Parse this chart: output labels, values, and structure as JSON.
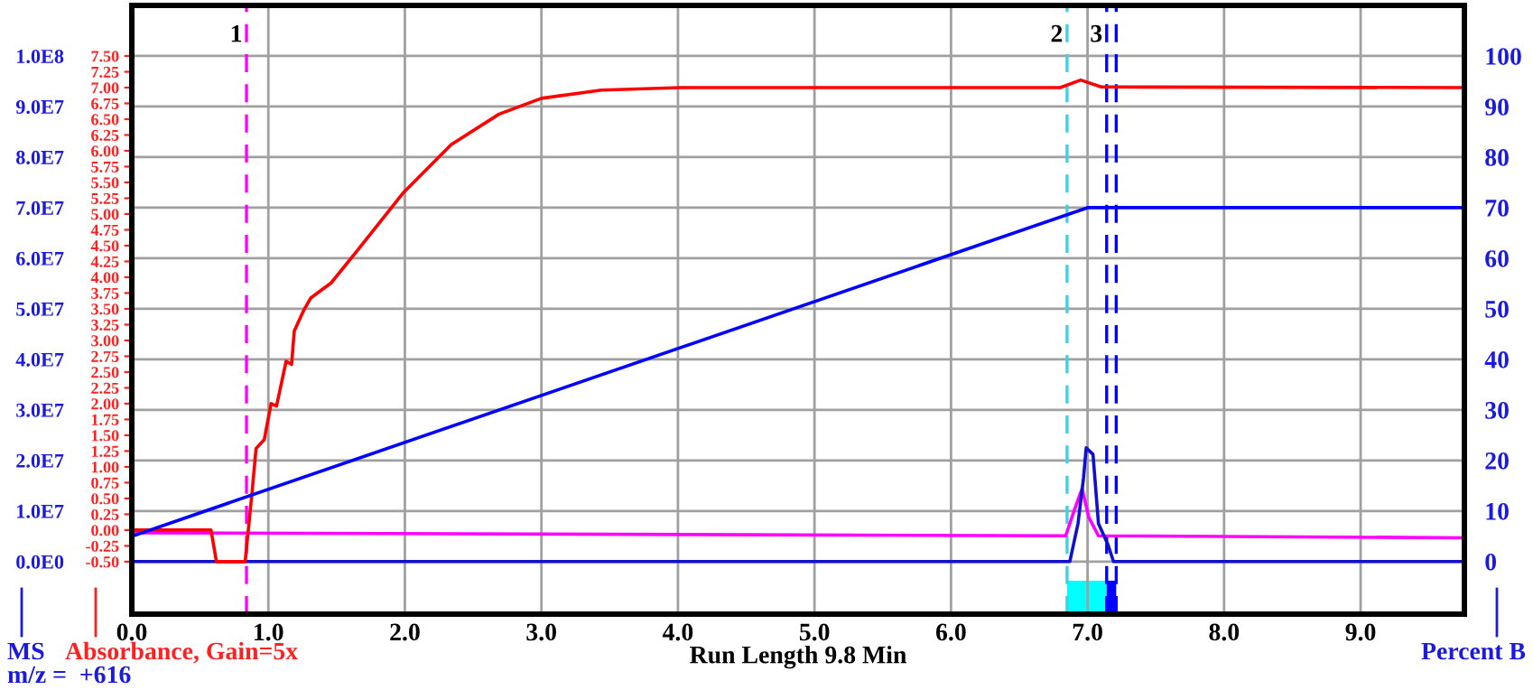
{
  "chart_data": {
    "type": "line",
    "xlabel": "Run Length 9.8 Min",
    "ylabel": "MS",
    "y2label": "Absorbance, Gain=5x",
    "y3label": "Percent B",
    "annotations": [
      "m/z =  +616",
      {
        "text": "1",
        "x": 0.84,
        "y": 104000000
      },
      {
        "text": "2",
        "x": 6.85,
        "y": 104000000
      },
      {
        "text": "3",
        "x": 7.14,
        "y": 104000000
      }
    ],
    "xlim": [
      0,
      9.76
    ],
    "xticks": [
      {
        "value": 0,
        "label": "0.0"
      },
      {
        "value": 1,
        "label": "1.0"
      },
      {
        "value": 2,
        "label": "2.0"
      },
      {
        "value": 3,
        "label": "3.0"
      },
      {
        "value": 4,
        "label": "4.0"
      },
      {
        "value": 5,
        "label": "5.0"
      },
      {
        "value": 6,
        "label": "6.0"
      },
      {
        "value": 7,
        "label": "7.0"
      },
      {
        "value": 8,
        "label": "8.0"
      },
      {
        "value": 9,
        "label": "9.0"
      }
    ],
    "ylim": [
      -10400000,
      110000000
    ],
    "yticks": [
      {
        "value": 0,
        "label": "0.0E0"
      },
      {
        "value": 10000000,
        "label": "1.0E7"
      },
      {
        "value": 20000000,
        "label": "2.0E7"
      },
      {
        "value": 30000000,
        "label": "3.0E7"
      },
      {
        "value": 40000000,
        "label": "4.0E7"
      },
      {
        "value": 50000000,
        "label": "5.0E7"
      },
      {
        "value": 60000000,
        "label": "6.0E7"
      },
      {
        "value": 70000000,
        "label": "7.0E7"
      },
      {
        "value": 80000000,
        "label": "8.0E7"
      },
      {
        "value": 90000000,
        "label": "9.0E7"
      },
      {
        "value": 100000000,
        "label": "1.0E8"
      }
    ],
    "y2lim": [
      -1.33,
      8.3
    ],
    "y2ticks": [
      {
        "value": -0.5,
        "label": "-0.50"
      },
      {
        "value": -0.25,
        "label": "-0.25"
      },
      {
        "value": 0,
        "label": "0.00"
      },
      {
        "value": 0.25,
        "label": "0.25"
      },
      {
        "value": 0.5,
        "label": "0.50"
      },
      {
        "value": 0.75,
        "label": "0.75"
      },
      {
        "value": 1,
        "label": "1.00"
      },
      {
        "value": 1.25,
        "label": "1.25"
      },
      {
        "value": 1.5,
        "label": "1.50"
      },
      {
        "value": 1.75,
        "label": "1.75"
      },
      {
        "value": 2,
        "label": "2.00"
      },
      {
        "value": 2.25,
        "label": "2.25"
      },
      {
        "value": 2.5,
        "label": "2.50"
      },
      {
        "value": 2.75,
        "label": "2.75"
      },
      {
        "value": 3,
        "label": "3.00"
      },
      {
        "value": 3.25,
        "label": "3.25"
      },
      {
        "value": 3.5,
        "label": "3.50"
      },
      {
        "value": 3.75,
        "label": "3.75"
      },
      {
        "value": 4,
        "label": "4.00"
      },
      {
        "value": 4.25,
        "label": "4.25"
      },
      {
        "value": 4.5,
        "label": "4.50"
      },
      {
        "value": 4.75,
        "label": "4.75"
      },
      {
        "value": 5,
        "label": "5.00"
      },
      {
        "value": 5.25,
        "label": "5.25"
      },
      {
        "value": 5.5,
        "label": "5.50"
      },
      {
        "value": 5.75,
        "label": "5.75"
      },
      {
        "value": 6,
        "label": "6.00"
      },
      {
        "value": 6.25,
        "label": "6.25"
      },
      {
        "value": 6.5,
        "label": "6.50"
      },
      {
        "value": 6.75,
        "label": "6.75"
      },
      {
        "value": 7,
        "label": "7.00"
      },
      {
        "value": 7.25,
        "label": "7.25"
      },
      {
        "value": 7.5,
        "label": "7.50"
      }
    ],
    "y3lim": [
      -10.4,
      110
    ],
    "y3ticks": [
      0,
      10,
      20,
      30,
      40,
      50,
      60,
      70,
      80,
      90,
      100
    ],
    "grid": true,
    "series": [
      {
        "color": "#ff0000",
        "axis": "y2",
        "x": [
          0,
          0.58,
          0.62,
          0.83,
          0.88,
          0.91,
          0.97,
          1.02,
          1.06,
          1.13,
          1.17,
          1.19,
          1.26,
          1.31,
          1.46,
          1.64,
          1.99,
          2.34,
          2.69,
          3.0,
          3.44,
          4.02,
          4.99,
          6.8,
          6.95,
          7.1,
          9.76
        ],
        "values": [
          0.0,
          0.0,
          -0.5,
          -0.5,
          0.58,
          1.29,
          1.43,
          2.0,
          1.96,
          2.67,
          2.62,
          3.15,
          3.48,
          3.67,
          3.91,
          4.39,
          5.34,
          6.1,
          6.58,
          6.83,
          6.96,
          7.0,
          7.0,
          7.0,
          7.12,
          7.01,
          7.0
        ]
      },
      {
        "color": "#ff00ff",
        "axis": "y",
        "x": [
          0,
          6.84,
          6.9,
          6.96,
          7.01,
          7.08,
          9.76
        ],
        "values": [
          5700000,
          5100000,
          9900000,
          14400000,
          8700000,
          5100000,
          4700000
        ]
      },
      {
        "color": "#0000ff",
        "axis": "y3",
        "x": [
          0,
          7.0,
          9.76
        ],
        "values": [
          5,
          70,
          70
        ]
      },
      {
        "color": "#1010d0",
        "axis": "y",
        "x": [
          0,
          6.87,
          6.93,
          6.97,
          6.99,
          7.04,
          7.08,
          7.15,
          7.19,
          9.76
        ],
        "values": [
          0,
          0,
          7500000,
          16400000,
          22500000,
          21200000,
          7500000,
          3300000,
          0,
          0
        ]
      }
    ],
    "ref_lines": [
      {
        "axis": "x",
        "value": 0.84,
        "color": "#ff00ff",
        "line_style": "dashed"
      },
      {
        "axis": "x",
        "value": 6.85,
        "color": "#40d0e0",
        "line_style": "dashed"
      },
      {
        "axis": "x",
        "value": 7.14,
        "color": "#0000ff",
        "line_style": "dashed"
      },
      {
        "axis": "x",
        "value": 7.21,
        "color": "#0000ff",
        "line_style": "dashed"
      }
    ],
    "bands": [
      {
        "axis": "x",
        "from": 6.85,
        "to": 7.14,
        "color": "#00ffff"
      },
      {
        "axis": "x",
        "from": 7.14,
        "to": 7.21,
        "color": "#0000ff"
      }
    ]
  }
}
